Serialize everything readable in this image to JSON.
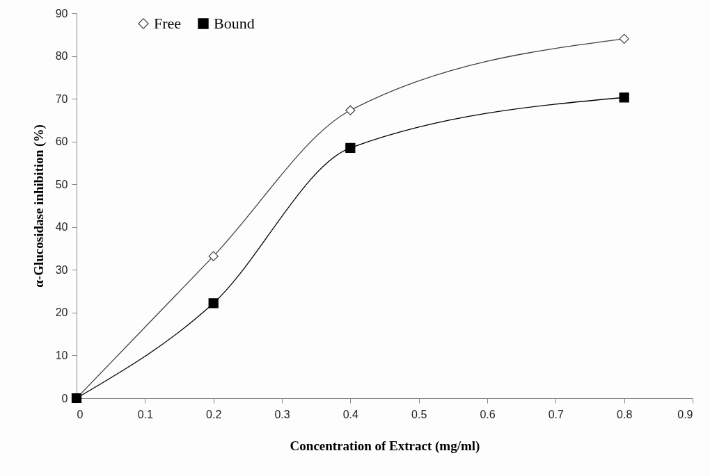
{
  "chart_data": {
    "type": "line",
    "xlabel": "Concentration of Extract (mg/ml)",
    "ylabel": "α-Glucosidase inhibition (%)",
    "x": [
      0,
      0.2,
      0.4,
      0.8
    ],
    "series": [
      {
        "name": "Free",
        "color": "#404040",
        "marker": "diamond",
        "values": [
          0,
          33.2,
          67.3,
          84.0
        ]
      },
      {
        "name": "Bound",
        "color": "#000000",
        "marker": "square",
        "values": [
          0,
          22.2,
          58.5,
          70.3
        ]
      }
    ],
    "xlim": [
      0,
      0.9
    ],
    "xticks": [
      0,
      0.1,
      0.2,
      0.3,
      0.4,
      0.5,
      0.6,
      0.7,
      0.8,
      0.9
    ],
    "ylim": [
      0,
      90
    ],
    "yticks": [
      0,
      10,
      20,
      30,
      40,
      50,
      60,
      70,
      80,
      90
    ],
    "grid": false,
    "legend": "top left",
    "line_style": "solid"
  }
}
